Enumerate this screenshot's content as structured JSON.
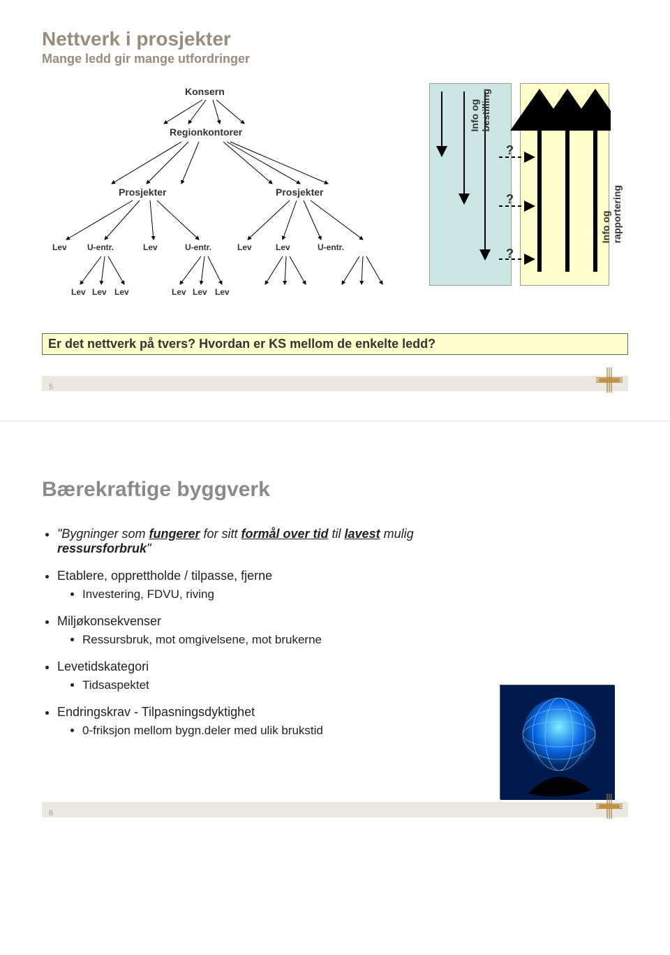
{
  "slide1": {
    "title": "Nettverk i prosjekter",
    "title_color": "#988c7a",
    "subtitle": "Mange ledd gir mange utfordringer",
    "subtitle_color": "#988c7a",
    "tree": {
      "level1": "Konsern",
      "level2": "Regionkontorer",
      "level3_left": "Prosjekter",
      "level3_right": "Prosjekter",
      "row4": [
        "Lev",
        "U-entr.",
        "Lev",
        "U-entr.",
        "Lev",
        "Lev",
        "U-entr."
      ],
      "row5_left": [
        "Lev",
        "Lev",
        "Lev"
      ],
      "row5_right": [
        "Lev",
        "Lev",
        "Lev"
      ],
      "arrow_color": "#000000",
      "line_width": 1
    },
    "panels": {
      "left": {
        "fill": "#cce6e6",
        "stroke": "#666666"
      },
      "right": {
        "fill": "#ffffcc",
        "stroke": "#666666"
      },
      "label_left": "Info og\nbestilling",
      "label_right": "Info og\nrapportering",
      "qmarks": [
        "?",
        "?",
        "?"
      ],
      "dashed_color": "#000000",
      "arrow_color": "#000000"
    },
    "question": "Er det nettverk på tvers? Hvordan er KS mellom de enkelte ledd?",
    "question_bg": "#ffffcc",
    "page_number": "5"
  },
  "slide2": {
    "title": "Bærekraftige byggverk",
    "title_color": "#8a8a8a",
    "bullets": [
      {
        "prefix": "\"Bygninger som ",
        "u1": "fungerer",
        "mid1": " for sitt ",
        "u2": "formål over tid",
        "mid2": " til ",
        "u3": "lavest",
        "mid3": " mulig ",
        "tail_bold": "ressursforbruk",
        "tail": "\"",
        "italic": true
      },
      {
        "text": "Etablere, opprettholde / tilpasse, fjerne",
        "sub": [
          "Investering, FDVU, riving"
        ]
      },
      {
        "text": "Miljøkonsekvenser",
        "sub": [
          "Ressursbruk, mot omgivelsene, mot brukerne"
        ]
      },
      {
        "text": "Levetidskategori",
        "sub": [
          "Tidsaspektet"
        ]
      },
      {
        "text": "Endringskrav - Tilpasningsdyktighet",
        "sub": [
          "0-friksjon mellom bygn.deler med ulik brukstid"
        ]
      }
    ],
    "page_number": "6",
    "globe_colors": {
      "bg": "#0a4dd6"
    }
  },
  "logo": {
    "stroke": "#a37b3e",
    "fill": "#c4923e"
  }
}
